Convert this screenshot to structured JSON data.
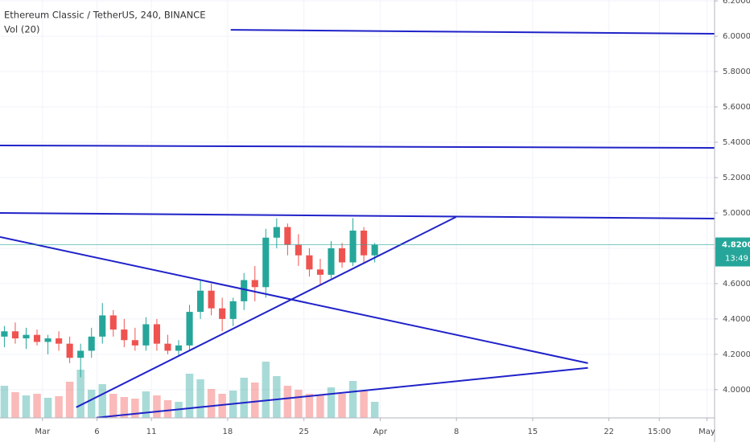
{
  "chart_data": {
    "type": "candlestick",
    "title": "Ethereum Classic / TetherUS, 240, BINANCE",
    "subtitle": "Vol (20)",
    "up_color": "#26a69a",
    "down_color": "#ef5350",
    "grid": true,
    "xlim": [
      -3.9,
      61.7
    ],
    "ylim": [
      3.84,
      6.205
    ],
    "xticks": [
      {
        "value": 0,
        "label": "Mar"
      },
      {
        "value": 5,
        "label": "6"
      },
      {
        "value": 10,
        "label": "11"
      },
      {
        "value": 17,
        "label": "18"
      },
      {
        "value": 24,
        "label": "25"
      },
      {
        "value": 31,
        "label": "Apr"
      },
      {
        "value": 38,
        "label": "8"
      },
      {
        "value": 45,
        "label": "15"
      },
      {
        "value": 52,
        "label": "22"
      },
      {
        "value": 56.625,
        "label": "15:00"
      },
      {
        "value": 61,
        "label": "May"
      }
    ],
    "yticks": [
      {
        "value": 4.0,
        "label": "4.0000"
      },
      {
        "value": 4.2,
        "label": "4.2000"
      },
      {
        "value": 4.4,
        "label": "4.4000"
      },
      {
        "value": 4.6,
        "label": "4.6000"
      },
      {
        "value": 4.8,
        "label": "4.8000"
      },
      {
        "value": 5.0,
        "label": "5.0000"
      },
      {
        "value": 5.2,
        "label": "5.2000"
      },
      {
        "value": 5.4,
        "label": "5.4000"
      },
      {
        "value": 5.6,
        "label": "5.6000"
      },
      {
        "value": 5.8,
        "label": "5.8000"
      },
      {
        "value": 6.0,
        "label": "6.0000"
      },
      {
        "value": 6.2,
        "label": "6.2000"
      }
    ],
    "last_price": {
      "value": 4.82,
      "label": "4.8200"
    },
    "countdown": "13:49",
    "x": [
      -3.5,
      -2.5,
      -1.5,
      -0.5,
      0.5,
      1.5,
      2.5,
      3.5,
      4.5,
      5.5,
      6.5,
      7.5,
      8.5,
      9.5,
      10.5,
      11.5,
      12.5,
      13.5,
      14.5,
      15.5,
      16.5,
      17.5,
      18.5,
      19.5,
      20.5,
      21.5,
      22.5,
      23.5,
      24.5,
      25.5,
      26.5,
      27.5,
      28.5,
      29.5,
      30.5
    ],
    "open": [
      4.3,
      4.33,
      4.29,
      4.31,
      4.27,
      4.29,
      4.26,
      4.18,
      4.22,
      4.3,
      4.42,
      4.34,
      4.28,
      4.25,
      4.37,
      4.26,
      4.22,
      4.25,
      4.44,
      4.56,
      4.46,
      4.4,
      4.5,
      4.62,
      4.58,
      4.86,
      4.92,
      4.82,
      4.76,
      4.68,
      4.65,
      4.8,
      4.72,
      4.9,
      4.76
    ],
    "high": [
      4.36,
      4.38,
      4.35,
      4.34,
      4.31,
      4.33,
      4.3,
      4.26,
      4.35,
      4.49,
      4.45,
      4.4,
      4.35,
      4.41,
      4.4,
      4.31,
      4.28,
      4.48,
      4.62,
      4.6,
      4.52,
      4.52,
      4.66,
      4.7,
      4.91,
      4.97,
      4.94,
      4.88,
      4.8,
      4.74,
      4.84,
      4.83,
      4.97,
      4.92,
      4.83
    ],
    "low": [
      4.24,
      4.26,
      4.23,
      4.25,
      4.2,
      4.22,
      4.15,
      4.07,
      4.18,
      4.26,
      4.3,
      4.24,
      4.22,
      4.22,
      4.22,
      4.2,
      4.19,
      4.22,
      4.4,
      4.42,
      4.33,
      4.36,
      4.45,
      4.5,
      4.52,
      4.8,
      4.76,
      4.7,
      4.64,
      4.59,
      4.63,
      4.69,
      4.7,
      4.72,
      4.72
    ],
    "close": [
      4.33,
      4.29,
      4.31,
      4.27,
      4.29,
      4.26,
      4.18,
      4.22,
      4.3,
      4.42,
      4.34,
      4.28,
      4.25,
      4.37,
      4.26,
      4.22,
      4.25,
      4.44,
      4.56,
      4.46,
      4.4,
      4.5,
      4.62,
      4.58,
      4.86,
      4.92,
      4.82,
      4.76,
      4.68,
      4.65,
      4.8,
      4.72,
      4.9,
      4.76,
      4.82
    ],
    "volume": [
      40,
      32,
      28,
      30,
      25,
      27,
      45,
      60,
      35,
      42,
      30,
      26,
      24,
      33,
      28,
      22,
      20,
      55,
      48,
      36,
      30,
      34,
      50,
      44,
      70,
      52,
      40,
      35,
      30,
      28,
      38,
      30,
      46,
      34,
      20
    ],
    "lines": [
      {
        "color": "#1f22c8",
        "x": [
          17.28,
          61.7
        ],
        "y": [
          6.036,
          6.014
        ]
      },
      {
        "color": "#1f22c8",
        "x": [
          -3.9,
          61.7
        ],
        "y": [
          5.382,
          5.368
        ]
      },
      {
        "color": "#1f22c8",
        "x": [
          -3.9,
          61.7
        ],
        "y": [
          5.0,
          4.968
        ]
      },
      {
        "color": "#1f22c8",
        "x": [
          3.1,
          37.96
        ],
        "y": [
          3.9,
          4.977
        ]
      },
      {
        "color": "#1f22c8",
        "x": [
          -3.9,
          50.07
        ],
        "y": [
          4.864,
          4.15
        ]
      },
      {
        "color": "#1f22c8",
        "x": [
          4.95,
          50.07
        ],
        "y": [
          3.841,
          4.123
        ]
      }
    ]
  }
}
